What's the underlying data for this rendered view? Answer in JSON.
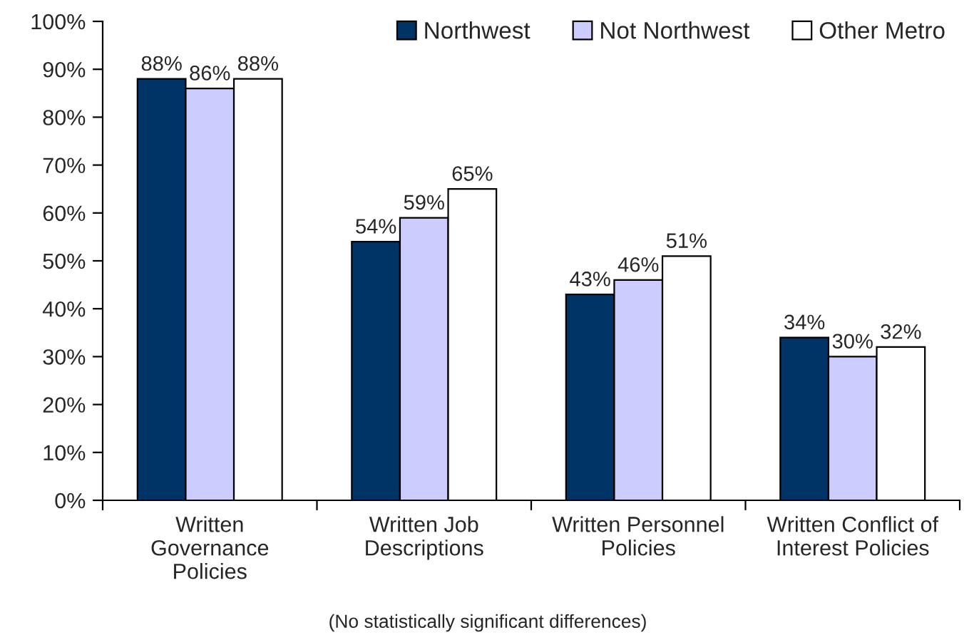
{
  "chart_data": {
    "type": "bar",
    "categories": [
      "Written\nGovernance\nPolicies",
      "Written Job\nDescriptions",
      "Written Personnel\nPolicies",
      "Written Conflict of\nInterest Policies"
    ],
    "series": [
      {
        "name": "Northwest",
        "color": "#003366",
        "values": [
          88,
          54,
          43,
          34
        ],
        "value_labels": [
          "88%",
          "54%",
          "43%",
          "34%"
        ]
      },
      {
        "name": "Not Northwest",
        "color": "#ccccff",
        "values": [
          86,
          59,
          46,
          30
        ],
        "value_labels": [
          "86%",
          "59%",
          "46%",
          "30%"
        ]
      },
      {
        "name": "Other Metro",
        "color": "#ffffff",
        "values": [
          88,
          65,
          51,
          32
        ],
        "value_labels": [
          "88%",
          "65%",
          "51%",
          "32%"
        ]
      }
    ],
    "ylim": [
      0,
      100
    ],
    "yticks": [
      {
        "value": 0,
        "label": "0%"
      },
      {
        "value": 10,
        "label": "10%"
      },
      {
        "value": 20,
        "label": "20%"
      },
      {
        "value": 30,
        "label": "30%"
      },
      {
        "value": 40,
        "label": "40%"
      },
      {
        "value": 50,
        "label": "50%"
      },
      {
        "value": 60,
        "label": "60%"
      },
      {
        "value": 70,
        "label": "70%"
      },
      {
        "value": 80,
        "label": "80%"
      },
      {
        "value": 90,
        "label": "90%"
      },
      {
        "value": 100,
        "label": "100%"
      }
    ],
    "legend": "top right",
    "annotations": [
      "(No statistically significant differences)"
    ]
  }
}
